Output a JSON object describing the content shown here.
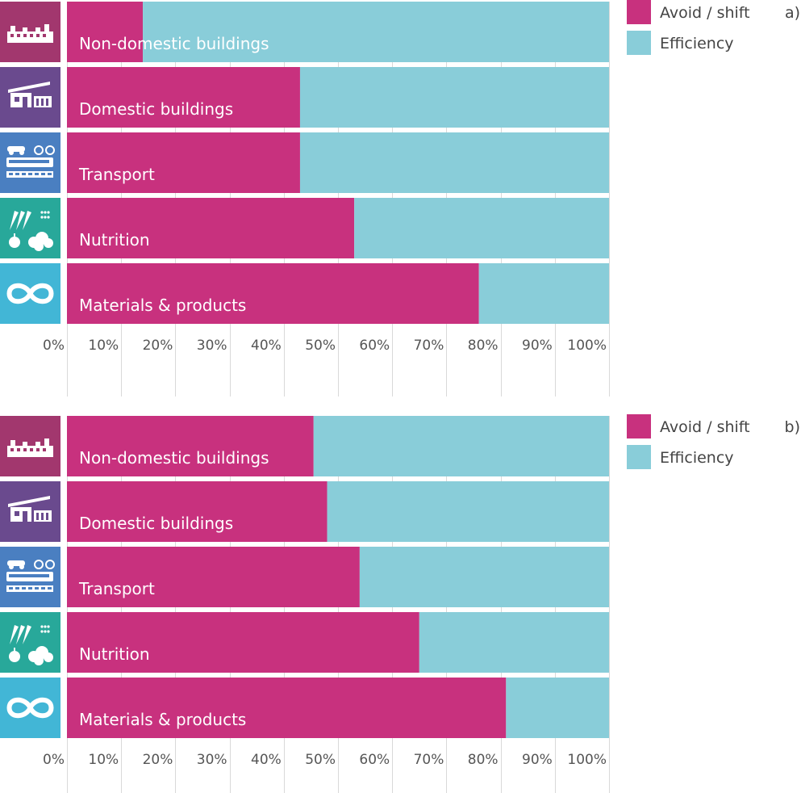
{
  "colors": {
    "avoid_shift": "#c8317e",
    "efficiency": "#89cdd9",
    "grid": "#d9d9d9",
    "icon_non_domestic": "#a2376e",
    "icon_domestic": "#6a4a8e",
    "icon_transport": "#4a7fc1",
    "icon_nutrition": "#28a89a",
    "icon_materials": "#42b6d6"
  },
  "icons": [
    "factory-icon",
    "house-icon",
    "transport-icon",
    "food-icon",
    "infinity-icon"
  ],
  "chart_data": [
    {
      "type": "bar",
      "orientation": "horizontal",
      "stacked": true,
      "panel_label": "a)",
      "categories": [
        "Non-domestic buildings",
        "Domestic buildings",
        "Transport",
        "Nutrition",
        "Materials & products"
      ],
      "series": [
        {
          "name": "Avoid / shift",
          "values": [
            14,
            43,
            43,
            53,
            76
          ]
        },
        {
          "name": "Efficiency",
          "values": [
            86,
            57,
            57,
            47,
            24
          ]
        }
      ],
      "xlim": [
        0,
        100
      ],
      "x_ticks": [
        "0%",
        "10%",
        "20%",
        "30%",
        "40%",
        "50%",
        "60%",
        "70%",
        "80%",
        "90%",
        "100%"
      ],
      "grid": true,
      "legend_position": "top-right"
    },
    {
      "type": "bar",
      "orientation": "horizontal",
      "stacked": true,
      "panel_label": "b)",
      "categories": [
        "Non-domestic buildings",
        "Domestic buildings",
        "Transport",
        "Nutrition",
        "Materials & products"
      ],
      "series": [
        {
          "name": "Avoid / shift",
          "values": [
            45.5,
            48,
            54,
            65,
            81
          ]
        },
        {
          "name": "Efficiency",
          "values": [
            54.5,
            52,
            46,
            35,
            19
          ]
        }
      ],
      "xlim": [
        0,
        100
      ],
      "x_ticks": [
        "0%",
        "10%",
        "20%",
        "30%",
        "40%",
        "50%",
        "60%",
        "70%",
        "80%",
        "90%",
        "100%"
      ],
      "grid": true,
      "legend_position": "top-right"
    }
  ]
}
